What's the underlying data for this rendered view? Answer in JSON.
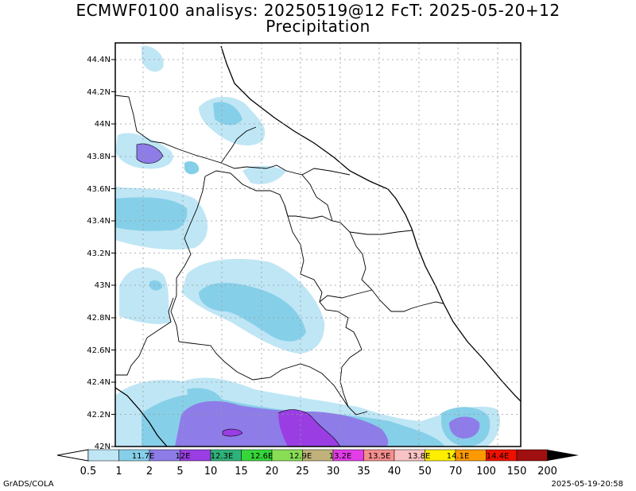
{
  "title": {
    "line1": "ECMWF0100 analisys: 20250519@12 FcT: 2025-05-20+12",
    "line2": "Precipitation"
  },
  "axes": {
    "lat_labels": [
      "42N",
      "42.2N",
      "42.4N",
      "42.6N",
      "42.8N",
      "43N",
      "43.2N",
      "43.4N",
      "43.6N",
      "43.8N",
      "44N",
      "44.2N",
      "44.4N"
    ],
    "lon_labels": [
      "11.7E",
      "12E",
      "12.3E",
      "12.6E",
      "12.9E",
      "13.2E",
      "13.5E",
      "13.8E",
      "14.1E",
      "14.4E"
    ]
  },
  "colorbar": {
    "labels": [
      "0.5",
      "1",
      "2",
      "5",
      "10",
      "15",
      "20",
      "25",
      "30",
      "35",
      "40",
      "50",
      "70",
      "100",
      "150",
      "200"
    ],
    "colors": [
      "#bfe6f5",
      "#86cfe9",
      "#8e7ce8",
      "#9a3ee3",
      "#2fb27a",
      "#36d63a",
      "#88dd55",
      "#c0b27a",
      "#e23de8",
      "#f68e8e",
      "#f9c3c3",
      "#ffee00",
      "#ff9900",
      "#ee1100",
      "#a01010"
    ]
  },
  "footer": {
    "left": "GrADS/COLA",
    "right": "2025-05-19-20:58"
  }
}
